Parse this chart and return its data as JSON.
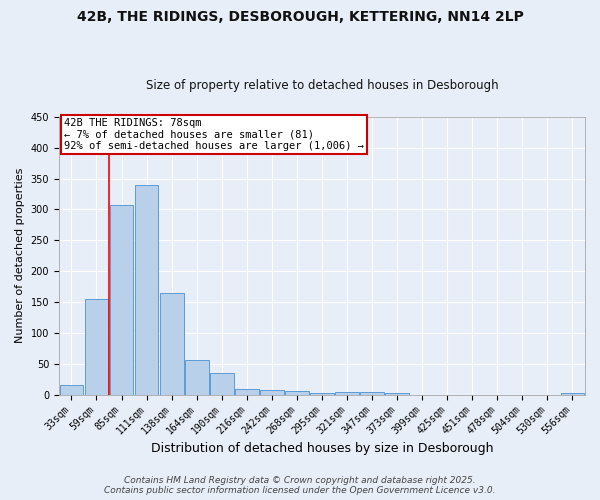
{
  "title1": "42B, THE RIDINGS, DESBOROUGH, KETTERING, NN14 2LP",
  "title2": "Size of property relative to detached houses in Desborough",
  "xlabel": "Distribution of detached houses by size in Desborough",
  "ylabel": "Number of detached properties",
  "categories": [
    "33sqm",
    "59sqm",
    "85sqm",
    "111sqm",
    "138sqm",
    "164sqm",
    "190sqm",
    "216sqm",
    "242sqm",
    "268sqm",
    "295sqm",
    "321sqm",
    "347sqm",
    "373sqm",
    "399sqm",
    "425sqm",
    "451sqm",
    "478sqm",
    "504sqm",
    "530sqm",
    "556sqm"
  ],
  "values": [
    15,
    155,
    307,
    340,
    165,
    57,
    35,
    10,
    8,
    6,
    3,
    5,
    4,
    2,
    0,
    0,
    0,
    0,
    0,
    0,
    3
  ],
  "bar_color": "#b8d0ea",
  "bar_edge_color": "#5b9bd5",
  "red_line_x": 1.5,
  "annotation_text": "42B THE RIDINGS: 78sqm\n← 7% of detached houses are smaller (81)\n92% of semi-detached houses are larger (1,006) →",
  "annotation_box_color": "#ffffff",
  "annotation_box_edge_color": "#cc0000",
  "ylim": [
    0,
    450
  ],
  "yticks": [
    0,
    50,
    100,
    150,
    200,
    250,
    300,
    350,
    400,
    450
  ],
  "footer1": "Contains HM Land Registry data © Crown copyright and database right 2025.",
  "footer2": "Contains public sector information licensed under the Open Government Licence v3.0.",
  "bg_color": "#e8eef8",
  "grid_color": "#ffffff",
  "title1_fontsize": 10,
  "title2_fontsize": 8.5,
  "xlabel_fontsize": 9,
  "ylabel_fontsize": 8,
  "tick_fontsize": 7,
  "annotation_fontsize": 7.5,
  "footer_fontsize": 6.5
}
